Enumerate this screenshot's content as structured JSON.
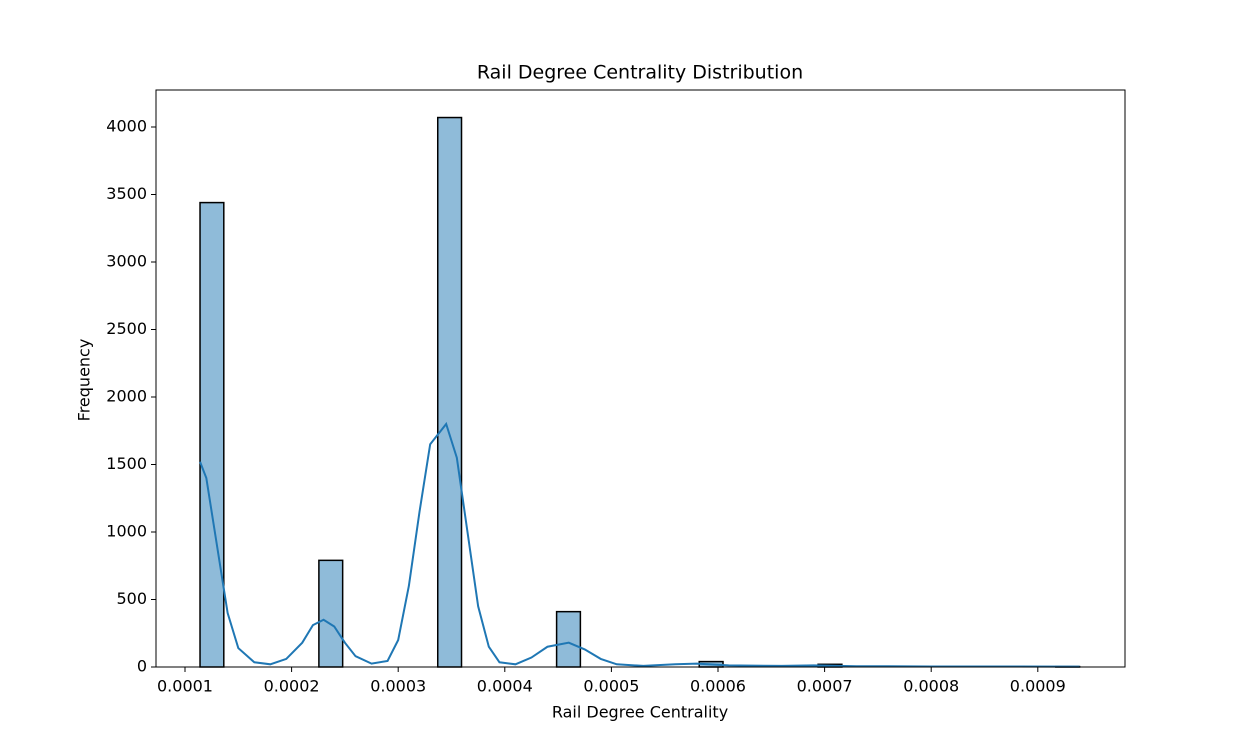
{
  "chart_data": {
    "type": "histogram",
    "title": "Rail Degree Centrality Distribution",
    "x_label": "Rail Degree Centrality",
    "y_label": "Frequency",
    "bins": [
      0.0001141,
      0.0001364,
      0.0001587,
      0.000181,
      0.0002033,
      0.0002256,
      0.0002479,
      0.0002702,
      0.0002925,
      0.0003148,
      0.0003371,
      0.0003594,
      0.0003817,
      0.000404,
      0.0004263,
      0.0004486,
      0.0004709,
      0.0004932,
      0.0005155,
      0.0005378,
      0.0005601,
      0.0005824,
      0.0006047,
      0.000627,
      0.0006493,
      0.0006716,
      0.0006939,
      0.0007162,
      0.0007385,
      0.0007608,
      0.0007831,
      0.0008054,
      0.0008277,
      0.00085,
      0.0008723,
      0.0008946,
      0.0009169,
      0.0009392
    ],
    "values": [
      3440,
      0,
      0,
      0,
      0,
      790,
      0,
      0,
      0,
      0,
      4070,
      0,
      0,
      0,
      0,
      410,
      0,
      0,
      0,
      0,
      0,
      40,
      0,
      0,
      0,
      0,
      20,
      0,
      0,
      0,
      0,
      0,
      0,
      0,
      0,
      0,
      3
    ],
    "color": "#1f77b4",
    "kde": {
      "color": "#1f77b4",
      "x": [
        0.0001141,
        0.00012,
        0.00013,
        0.00014,
        0.00015,
        0.000165,
        0.00018,
        0.000195,
        0.00021,
        0.00022,
        0.00023,
        0.00024,
        0.00025,
        0.00026,
        0.000275,
        0.00029,
        0.0003,
        0.00031,
        0.00032,
        0.00033,
        0.000345,
        0.000355,
        0.000365,
        0.000375,
        0.000385,
        0.000395,
        0.00041,
        0.000425,
        0.00044,
        0.00046,
        0.000475,
        0.00049,
        0.000505,
        0.00053,
        0.00056,
        0.00058,
        0.00061,
        0.00066,
        0.00069,
        0.00073,
        0.0008,
        0.00087,
        0.0009392
      ],
      "values": [
        1520,
        1400,
        900,
        400,
        140,
        35,
        20,
        60,
        180,
        310,
        350,
        300,
        180,
        80,
        25,
        45,
        200,
        600,
        1150,
        1650,
        1800,
        1550,
        1000,
        450,
        150,
        35,
        20,
        70,
        150,
        180,
        130,
        60,
        20,
        8,
        20,
        25,
        12,
        8,
        12,
        6,
        4,
        4,
        3
      ]
    },
    "xlim": [
      7.28e-05,
      0.0009818
    ],
    "xticks": [
      0.0001,
      0.0002,
      0.0003,
      0.0004,
      0.0005,
      0.0006,
      0.0007,
      0.0008,
      0.0009
    ],
    "ylim": [
      0,
      4274
    ],
    "yticks": [
      0,
      500,
      1000,
      1500,
      2000,
      2500,
      3000,
      3500,
      4000
    ]
  }
}
